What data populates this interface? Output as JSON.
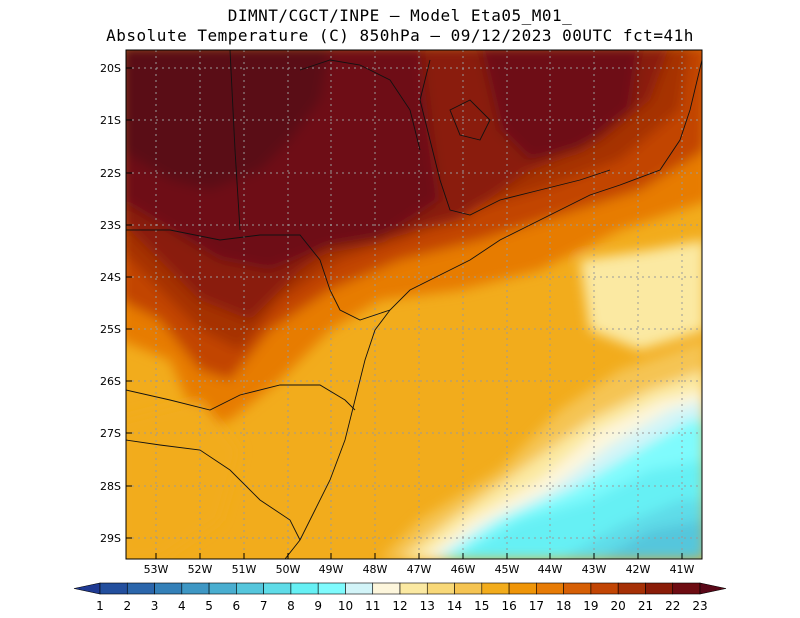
{
  "title": {
    "line1": "DIMNT/CGCT/INPE —  Model Eta05_M01_",
    "line2": "Absolute Temperature (C) 850hPa —  09/12/2023 00UTC fct=41h"
  },
  "axes": {
    "lat_labels": [
      "20S",
      "21S",
      "22S",
      "23S",
      "24S",
      "25S",
      "26S",
      "27S",
      "28S",
      "29S"
    ],
    "lon_labels": [
      "53W",
      "52W",
      "51W",
      "50W",
      "49W",
      "48W",
      "47W",
      "46W",
      "45W",
      "44W",
      "43W",
      "42W",
      "41W"
    ]
  },
  "colorbar": {
    "labels": [
      "1",
      "2",
      "3",
      "4",
      "5",
      "6",
      "7",
      "8",
      "9",
      "10",
      "11",
      "12",
      "13",
      "14",
      "15",
      "16",
      "17",
      "18",
      "19",
      "20",
      "21",
      "22",
      "23"
    ],
    "colors": [
      "#1f3a93",
      "#234f9e",
      "#2b66ab",
      "#3480b8",
      "#3e97c4",
      "#49aed0",
      "#55c6dc",
      "#5fdce8",
      "#66f0f4",
      "#7ffbfd",
      "#d2f4f8",
      "#fdf6dc",
      "#fbe9a2",
      "#f8d878",
      "#f5c452",
      "#f2ac1c",
      "#ef9508",
      "#e77b05",
      "#d65f05",
      "#c24504",
      "#a63006",
      "#8a1c08",
      "#6e0c12",
      "#5a0818"
    ]
  }
}
